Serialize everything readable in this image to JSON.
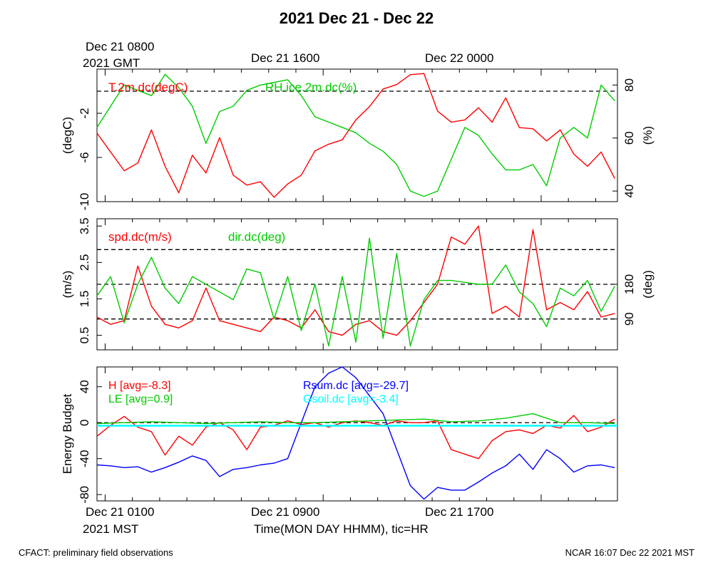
{
  "title": "2021 Dec 21 - Dec 22",
  "top_axis": {
    "gmt_start_line1": "Dec 21 0800",
    "gmt_start_line2": "2021 GMT",
    "tick_a": "Dec 21 1600",
    "tick_b": "Dec 22 0000"
  },
  "bottom_axis": {
    "mst_start": "Dec 21 0100",
    "year_zone": "2021 MST",
    "tick_a": "Dec 21 0900",
    "tick_b": "Dec 21 1700",
    "xlabel": "Time(MON DAY HHMM), tic=HR"
  },
  "footer": {
    "left": "CFACT: preliminary field observations",
    "right": "NCAR 16:07 Dec 22 2021 MST"
  },
  "colors": {
    "red": "#ff0000",
    "green": "#00cc00",
    "blue": "#0000ff",
    "cyan": "#00ffff"
  },
  "chart_data": [
    {
      "type": "line",
      "x_unit": "hours since Dec 21 0000 MST",
      "xlim": [
        0.7,
        19.8
      ],
      "y_left": {
        "label": "(degC)",
        "ticks": [
          "-2",
          "-6",
          "-10"
        ],
        "tick_values": [
          -2,
          -6,
          -10
        ],
        "lim": [
          -10,
          2
        ]
      },
      "y_right": {
        "label": "(%)",
        "ticks": [
          "80",
          "60",
          "40"
        ],
        "tick_values": [
          80,
          60,
          40
        ],
        "lim": [
          36,
          86
        ]
      },
      "reference_lines": [
        {
          "axis": "left",
          "value": 0
        }
      ],
      "series": [
        {
          "name": "T.2m.dc(degC)",
          "axis": "left",
          "color": "#ff0000",
          "x": [
            0.7,
            1.2,
            1.7,
            2.2,
            2.7,
            3.2,
            3.7,
            4.2,
            4.7,
            5.2,
            5.7,
            6.2,
            6.7,
            7.2,
            7.7,
            8.2,
            8.7,
            9.2,
            9.7,
            10.2,
            10.7,
            11.2,
            11.7,
            12.2,
            12.7,
            13.2,
            13.7,
            14.2,
            14.7,
            15.2,
            15.7,
            16.2,
            16.7,
            17.2,
            17.7,
            18.2,
            18.7,
            19.2,
            19.7
          ],
          "y": [
            -3.8,
            -5.5,
            -7.2,
            -6.5,
            -3.5,
            -6.8,
            -9.2,
            -5.8,
            -7.4,
            -4.2,
            -7.6,
            -8.5,
            -8.2,
            -9.6,
            -8.4,
            -7.6,
            -5.4,
            -4.8,
            -4.4,
            -2.6,
            -1.4,
            0.2,
            0.6,
            1.5,
            1.6,
            -1.8,
            -2.8,
            -2.6,
            -1.5,
            -2.8,
            -0.6,
            -3.3,
            -3.4,
            -4.5,
            -3.5,
            -5.7,
            -6.8,
            -5.5,
            -7.9
          ]
        },
        {
          "name": "RH.ice.2m.dc(%)",
          "axis": "right",
          "color": "#00cc00",
          "x": [
            0.7,
            1.2,
            1.7,
            2.2,
            2.7,
            3.2,
            3.7,
            4.2,
            4.7,
            5.2,
            5.7,
            6.2,
            6.7,
            7.2,
            7.7,
            8.2,
            8.7,
            9.2,
            9.7,
            10.2,
            10.7,
            11.2,
            11.7,
            12.2,
            12.7,
            13.2,
            13.7,
            14.2,
            14.7,
            15.2,
            15.7,
            16.2,
            16.7,
            17.2,
            17.7,
            18.2,
            18.7,
            19.2,
            19.7
          ],
          "y": [
            64,
            72,
            80,
            78,
            76,
            84,
            79,
            72,
            58,
            70,
            72,
            78,
            80,
            81,
            82,
            76,
            68,
            66,
            64,
            62,
            58,
            55,
            50,
            40,
            38,
            40,
            52,
            64,
            61,
            54,
            48,
            48,
            50,
            42,
            60,
            64,
            60,
            80,
            74
          ]
        }
      ],
      "legend": [
        "T.2m.dc(degC)",
        "RH.ice.2m.dc(%)"
      ]
    },
    {
      "type": "line",
      "x_unit": "hours since Dec 21 0000 MST",
      "xlim": [
        0.7,
        19.8
      ],
      "y_left": {
        "label": "(m/s)",
        "ticks": [
          "3.5",
          "2.5",
          "1.5",
          "0.5"
        ],
        "tick_values": [
          3.5,
          2.5,
          1.5,
          0.5
        ],
        "lim": [
          0.1,
          3.7
        ]
      },
      "y_right": {
        "label": "(deg)",
        "ticks": [
          "180",
          "90"
        ],
        "tick_values": [
          180,
          90
        ],
        "lim": [
          10,
          350
        ]
      },
      "reference_lines": [
        {
          "axis": "right",
          "value": 270
        },
        {
          "axis": "right",
          "value": 180
        },
        {
          "axis": "right",
          "value": 90
        }
      ],
      "series": [
        {
          "name": "spd.dc(m/s)",
          "axis": "left",
          "color": "#ff0000",
          "x": [
            0.7,
            1.2,
            1.7,
            2.2,
            2.7,
            3.2,
            3.7,
            4.2,
            4.7,
            5.2,
            5.7,
            6.2,
            6.7,
            7.2,
            7.7,
            8.2,
            8.7,
            9.2,
            9.7,
            10.2,
            10.7,
            11.2,
            11.7,
            12.2,
            12.7,
            13.2,
            13.7,
            14.2,
            14.7,
            15.2,
            15.7,
            16.2,
            16.7,
            17.2,
            17.7,
            18.2,
            18.7,
            19.2,
            19.7
          ],
          "y": [
            1.0,
            0.8,
            0.9,
            2.4,
            1.3,
            0.8,
            0.7,
            0.9,
            1.8,
            0.9,
            0.8,
            0.7,
            0.6,
            1.0,
            0.9,
            0.7,
            1.2,
            0.6,
            0.5,
            0.8,
            0.9,
            0.6,
            0.5,
            0.9,
            1.4,
            1.9,
            3.2,
            3.0,
            3.5,
            1.1,
            1.3,
            1.0,
            3.4,
            1.2,
            1.4,
            1.2,
            1.7,
            1.0,
            1.1
          ]
        },
        {
          "name": "dir.dc(deg)",
          "axis": "right",
          "color": "#00cc00",
          "x": [
            0.7,
            1.2,
            1.7,
            2.2,
            2.7,
            3.2,
            3.7,
            4.2,
            4.7,
            5.2,
            5.7,
            6.2,
            6.7,
            7.2,
            7.7,
            8.2,
            8.7,
            9.2,
            9.7,
            10.2,
            10.7,
            11.2,
            11.7,
            12.2,
            12.7,
            13.2,
            13.7,
            14.2,
            14.7,
            15.2,
            15.7,
            16.2,
            16.7,
            17.2,
            17.7,
            18.2,
            18.7,
            19.2,
            19.7
          ],
          "y": [
            150,
            200,
            80,
            180,
            250,
            170,
            130,
            200,
            180,
            160,
            140,
            220,
            210,
            90,
            200,
            60,
            180,
            20,
            200,
            30,
            300,
            40,
            260,
            20,
            140,
            190,
            190,
            185,
            180,
            180,
            230,
            160,
            130,
            70,
            170,
            150,
            190,
            110,
            175
          ]
        }
      ],
      "legend": [
        "spd.dc(m/s)",
        "dir.dc(deg)"
      ]
    },
    {
      "type": "line",
      "x_unit": "hours since Dec 21 0000 MST",
      "xlim": [
        0.7,
        19.8
      ],
      "y_left": {
        "label": "Energy Budget",
        "ticks": [
          "40",
          "0",
          "-40",
          "-80"
        ],
        "tick_values": [
          40,
          0,
          -40,
          -80
        ],
        "lim": [
          -87,
          62
        ]
      },
      "reference_lines": [
        {
          "axis": "left",
          "value": 0
        }
      ],
      "series": [
        {
          "name": "H [avg=-8.3]",
          "color": "#ff0000",
          "x": [
            0.7,
            1.2,
            1.7,
            2.2,
            2.7,
            3.2,
            3.7,
            4.2,
            4.7,
            5.2,
            5.7,
            6.2,
            6.7,
            7.2,
            7.7,
            8.2,
            8.7,
            9.2,
            9.7,
            10.2,
            10.7,
            11.2,
            11.7,
            12.2,
            12.7,
            13.2,
            13.7,
            14.2,
            14.7,
            15.2,
            15.7,
            16.2,
            16.7,
            17.2,
            17.7,
            18.2,
            18.7,
            19.2,
            19.7
          ],
          "y": [
            -15,
            -3,
            7,
            -5,
            -10,
            -36,
            -15,
            -25,
            -5,
            0,
            -8,
            -30,
            -5,
            -3,
            2,
            -2,
            0,
            -5,
            0,
            2,
            0,
            -3,
            2,
            0,
            0,
            2,
            -30,
            -35,
            -40,
            -20,
            -10,
            -8,
            -12,
            -3,
            -6,
            8,
            -10,
            -5,
            4
          ]
        },
        {
          "name": "LE [avg=0.9]",
          "color": "#00cc00",
          "x": [
            0.7,
            1.7,
            2.7,
            3.7,
            4.7,
            5.7,
            6.7,
            7.7,
            8.7,
            9.7,
            10.7,
            11.7,
            12.7,
            13.7,
            14.7,
            15.7,
            16.7,
            17.7,
            18.7,
            19.7
          ],
          "y": [
            -1,
            0,
            1,
            0,
            -1,
            0,
            1,
            0,
            0,
            1,
            2,
            3,
            4,
            1,
            2,
            5,
            10,
            0,
            0,
            -1
          ]
        },
        {
          "name": "Rsum.dc [avg=-29.7]",
          "color": "#0000ff",
          "x": [
            0.7,
            1.2,
            1.7,
            2.2,
            2.7,
            3.2,
            3.7,
            4.2,
            4.7,
            5.2,
            5.7,
            6.2,
            6.7,
            7.2,
            7.7,
            8.2,
            8.7,
            9.2,
            9.7,
            10.2,
            10.7,
            11.2,
            11.7,
            12.2,
            12.7,
            13.2,
            13.7,
            14.2,
            14.7,
            15.2,
            15.7,
            16.2,
            16.7,
            17.2,
            17.7,
            18.2,
            18.7,
            19.2,
            19.7
          ],
          "y": [
            -47,
            -48,
            -50,
            -49,
            -55,
            -50,
            -44,
            -37,
            -42,
            -60,
            -52,
            -50,
            -47,
            -45,
            -40,
            0,
            40,
            55,
            62,
            50,
            30,
            10,
            -30,
            -70,
            -85,
            -72,
            -75,
            -75,
            -66,
            -56,
            -48,
            -35,
            -52,
            -30,
            -40,
            -55,
            -48,
            -47,
            -50
          ]
        },
        {
          "name": "Gsoil.dc [avg=-3.4]",
          "color": "#00ffff",
          "x": [
            0.7,
            19.8
          ],
          "y": [
            -3.4,
            -3.4
          ]
        }
      ],
      "legend": [
        "H [avg=-8.3]",
        "LE [avg=0.9]",
        "Rsum.dc [avg=-29.7]",
        "Gsoil.dc [avg=-3.4]"
      ]
    }
  ]
}
